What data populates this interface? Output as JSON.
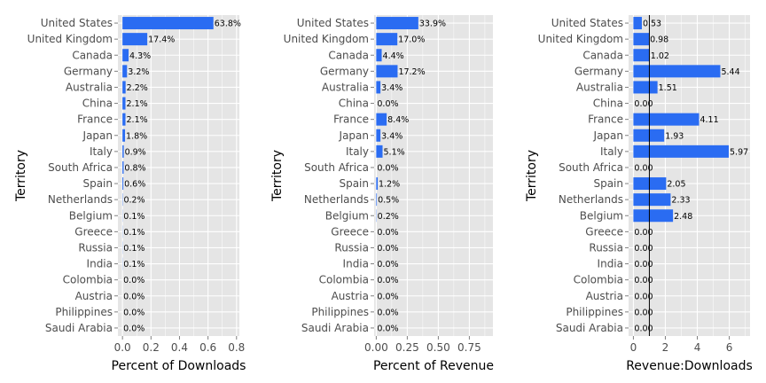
{
  "colors": {
    "bar": "#2a6cf2",
    "panel": "#e5e5e5",
    "grid": "#ffffff",
    "reference_line": "#000000"
  },
  "chart_data": [
    {
      "type": "bar",
      "orientation": "horizontal",
      "categories": [
        "United States",
        "United Kingdom",
        "Canada",
        "Germany",
        "Australia",
        "China",
        "France",
        "Japan",
        "Italy",
        "South Africa",
        "Spain",
        "Netherlands",
        "Belgium",
        "Greece",
        "Russia",
        "India",
        "Colombia",
        "Austria",
        "Philippines",
        "Saudi Arabia"
      ],
      "values": [
        0.638,
        0.174,
        0.043,
        0.032,
        0.022,
        0.021,
        0.021,
        0.018,
        0.009,
        0.008,
        0.006,
        0.002,
        0.001,
        0.001,
        0.001,
        0.001,
        0.0,
        0.0,
        0.0,
        0.0
      ],
      "data_labels": [
        "63.8%",
        "17.4%",
        "4.3%",
        "3.2%",
        "2.2%",
        "2.1%",
        "2.1%",
        "1.8%",
        "0.9%",
        "0.8%",
        "0.6%",
        "0.2%",
        "0.1%",
        "0.1%",
        "0.1%",
        "0.1%",
        "0.0%",
        "0.0%",
        "0.0%",
        "0.0%"
      ],
      "xlabel": "Percent of Downloads",
      "ylabel": "Territory",
      "xlim": [
        -0.032,
        0.82
      ],
      "xticks": [
        0.0,
        0.2,
        0.4,
        0.6,
        0.8
      ],
      "xtick_labels": [
        "0.0",
        "0.2",
        "0.4",
        "0.6",
        "0.8"
      ],
      "grid": true
    },
    {
      "type": "bar",
      "orientation": "horizontal",
      "categories": [
        "United States",
        "United Kingdom",
        "Canada",
        "Germany",
        "Australia",
        "China",
        "France",
        "Japan",
        "Italy",
        "South Africa",
        "Spain",
        "Netherlands",
        "Belgium",
        "Greece",
        "Russia",
        "India",
        "Colombia",
        "Austria",
        "Philippines",
        "Saudi Arabia"
      ],
      "values": [
        0.339,
        0.17,
        0.044,
        0.172,
        0.034,
        0.0,
        0.084,
        0.034,
        0.051,
        0.0,
        0.012,
        0.005,
        0.002,
        0.0,
        0.0,
        0.0,
        0.0,
        0.0,
        0.0,
        0.0
      ],
      "data_labels": [
        "33.9%",
        "17.0%",
        "4.4%",
        "17.2%",
        "3.4%",
        "0.0%",
        "8.4%",
        "3.4%",
        "5.1%",
        "0.0%",
        "1.2%",
        "0.5%",
        "0.2%",
        "0.0%",
        "0.0%",
        "0.0%",
        "0.0%",
        "0.0%",
        "0.0%",
        "0.0%"
      ],
      "xlabel": "Percent of Revenue",
      "ylabel": "Territory",
      "xlim": [
        -0.017,
        0.94
      ],
      "xticks": [
        0.0,
        0.25,
        0.5,
        0.75
      ],
      "xtick_labels": [
        "0.00",
        "0.25",
        "0.50",
        "0.75"
      ],
      "grid": true
    },
    {
      "type": "bar",
      "orientation": "horizontal",
      "categories": [
        "United States",
        "United Kingdom",
        "Canada",
        "Germany",
        "Australia",
        "China",
        "France",
        "Japan",
        "Italy",
        "South Africa",
        "Spain",
        "Netherlands",
        "Belgium",
        "Greece",
        "Russia",
        "India",
        "Colombia",
        "Austria",
        "Philippines",
        "Saudi Arabia"
      ],
      "values": [
        0.53,
        0.98,
        1.02,
        5.44,
        1.51,
        0.0,
        4.11,
        1.93,
        5.97,
        0.0,
        2.05,
        2.33,
        2.48,
        0.0,
        0.0,
        0.0,
        0.0,
        0.0,
        0.0,
        0.0
      ],
      "data_labels": [
        "0.53",
        "0.98",
        "1.02",
        "5.44",
        "1.51",
        "0.00",
        "4.11",
        "1.93",
        "5.97",
        "0.00",
        "2.05",
        "2.33",
        "2.48",
        "0.00",
        "0.00",
        "0.00",
        "0.00",
        "0.00",
        "0.00",
        "0.00"
      ],
      "xlabel": "Revenue:Downloads",
      "ylabel": "Territory",
      "xlim": [
        -0.3,
        7.3
      ],
      "xticks": [
        0,
        2,
        4,
        6
      ],
      "xtick_labels": [
        "0",
        "2",
        "4",
        "6"
      ],
      "reference_line_x": 1.0,
      "grid": true
    }
  ]
}
